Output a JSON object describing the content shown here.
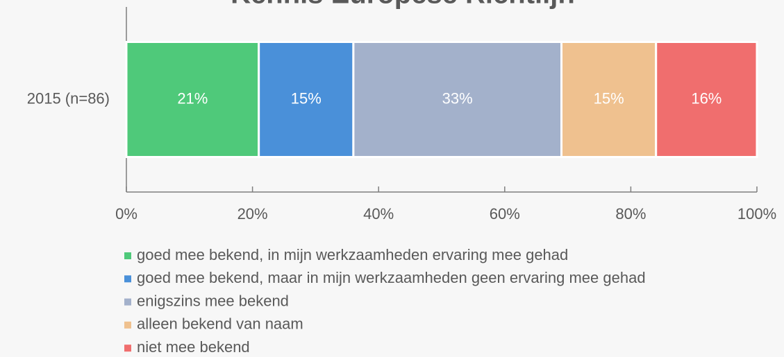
{
  "chart_data": {
    "type": "stacked-bar-horizontal",
    "title": "Kennis Europese Richtlijn",
    "categories": [
      "2015 (n=86)"
    ],
    "series": [
      {
        "name": "goed mee bekend, in mijn werkzaamheden ervaring mee gehad",
        "color": "#4fc97a",
        "values": [
          21
        ],
        "value_labels": [
          "21%"
        ]
      },
      {
        "name": "goed mee bekend, maar in mijn werkzaamheden geen ervaring mee gehad",
        "color": "#4a90d9",
        "values": [
          15
        ],
        "value_labels": [
          "15%"
        ]
      },
      {
        "name": "enigszins mee bekend",
        "color": "#a3b1cb",
        "values": [
          33
        ],
        "value_labels": [
          "33%"
        ]
      },
      {
        "name": "alleen bekend van naam",
        "color": "#efc18f",
        "values": [
          15
        ],
        "value_labels": [
          "15%"
        ]
      },
      {
        "name": "niet mee bekend",
        "color": "#f06e6e",
        "values": [
          16
        ],
        "value_labels": [
          "16%"
        ]
      }
    ],
    "xlim": [
      0,
      100
    ],
    "xticks": [
      {
        "value": 0,
        "label": "0%"
      },
      {
        "value": 20,
        "label": "20%"
      },
      {
        "value": 40,
        "label": "40%"
      },
      {
        "value": 60,
        "label": "60%"
      },
      {
        "value": 80,
        "label": "80%"
      },
      {
        "value": 100,
        "label": "100%"
      }
    ],
    "legend": "bottom"
  }
}
